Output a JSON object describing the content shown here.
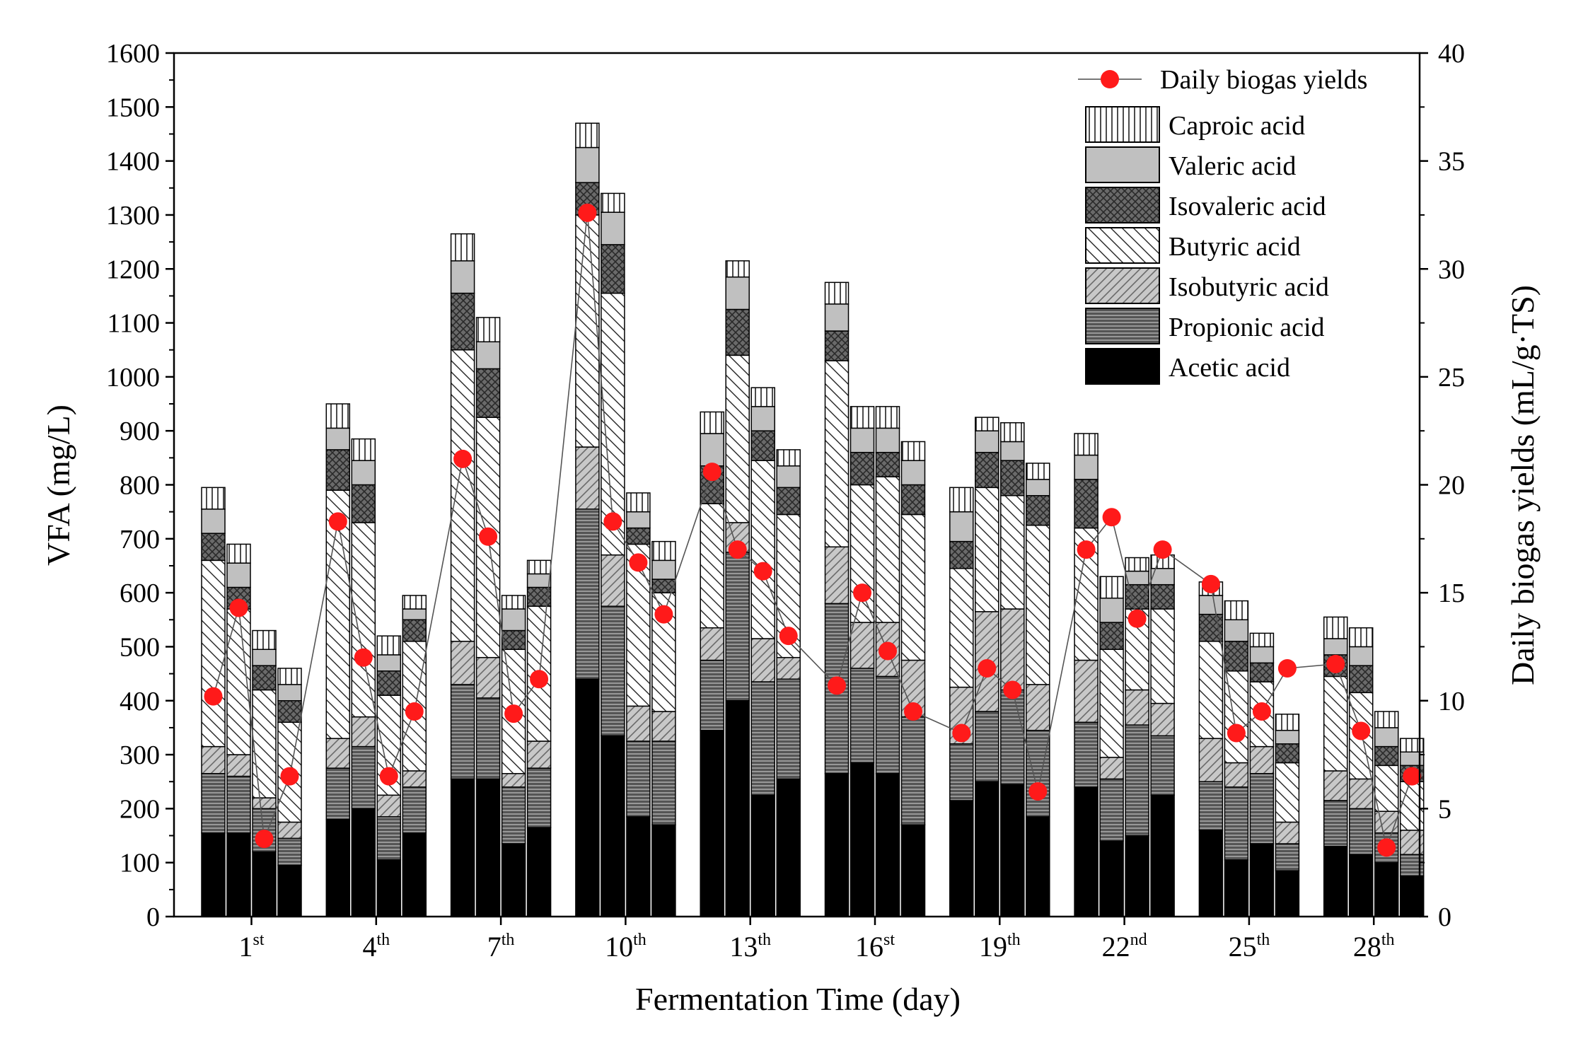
{
  "chart_data": {
    "type": "bar",
    "subtype": "stacked-bar-with-scatter-line",
    "title": "",
    "xlabel": "Fermentation Time (day)",
    "ylabel": "VFA (mg/L)",
    "y2label": "Daily biogas yields (mL/g·TS)",
    "ylim": [
      0,
      1600
    ],
    "y2lim": [
      0,
      40
    ],
    "yticks": [
      0,
      100,
      200,
      300,
      400,
      500,
      600,
      700,
      800,
      900,
      1000,
      1100,
      1200,
      1300,
      1400,
      1500,
      1600
    ],
    "y2ticks": [
      0,
      5,
      10,
      15,
      20,
      25,
      30,
      35,
      40
    ],
    "bars_per_group": 4,
    "groups": [
      {
        "num": "1",
        "sup": "st"
      },
      {
        "num": "4",
        "sup": "th"
      },
      {
        "num": "7",
        "sup": "th"
      },
      {
        "num": "10",
        "sup": "th"
      },
      {
        "num": "13",
        "sup": "th"
      },
      {
        "num": "16",
        "sup": "st"
      },
      {
        "num": "19",
        "sup": "th"
      },
      {
        "num": "22",
        "sup": "nd"
      },
      {
        "num": "25",
        "sup": "th"
      },
      {
        "num": "28",
        "sup": "th"
      }
    ],
    "series": [
      {
        "name": "Acetic acid",
        "pattern": "solid-black",
        "values": [
          155,
          155,
          120,
          95,
          180,
          200,
          105,
          155,
          255,
          255,
          135,
          165,
          440,
          335,
          185,
          170,
          345,
          400,
          225,
          255,
          265,
          285,
          265,
          170,
          215,
          250,
          245,
          185,
          240,
          140,
          150,
          225,
          160,
          105,
          135,
          85,
          130,
          115,
          100,
          75
        ]
      },
      {
        "name": "Propionic acid",
        "pattern": "dark-gray-hlines",
        "values": [
          110,
          105,
          80,
          50,
          95,
          115,
          80,
          85,
          175,
          150,
          105,
          110,
          315,
          240,
          140,
          155,
          130,
          275,
          210,
          185,
          315,
          175,
          180,
          200,
          105,
          130,
          175,
          160,
          120,
          115,
          205,
          110,
          90,
          135,
          130,
          50,
          85,
          85,
          55,
          40
        ]
      },
      {
        "name": "Isobutyric acid",
        "pattern": "gray-diagonal",
        "values": [
          50,
          40,
          20,
          30,
          55,
          55,
          40,
          30,
          80,
          75,
          25,
          50,
          115,
          95,
          65,
          55,
          60,
          55,
          80,
          40,
          105,
          85,
          100,
          105,
          105,
          185,
          150,
          85,
          115,
          40,
          65,
          60,
          80,
          45,
          50,
          40,
          55,
          55,
          40,
          45
        ]
      },
      {
        "name": "Butyric acid",
        "pattern": "white-backdiagonal",
        "values": [
          345,
          270,
          200,
          185,
          460,
          360,
          185,
          240,
          540,
          445,
          230,
          250,
          430,
          485,
          300,
          220,
          230,
          310,
          330,
          265,
          345,
          255,
          270,
          270,
          220,
          230,
          210,
          295,
          245,
          200,
          150,
          175,
          180,
          170,
          120,
          110,
          175,
          160,
          85,
          90
        ]
      },
      {
        "name": "Isovaleric acid",
        "pattern": "dark-crosshatch",
        "values": [
          50,
          40,
          45,
          40,
          75,
          70,
          45,
          40,
          105,
          90,
          35,
          35,
          60,
          90,
          30,
          25,
          70,
          85,
          55,
          50,
          55,
          60,
          45,
          55,
          50,
          65,
          65,
          55,
          90,
          50,
          45,
          45,
          50,
          55,
          35,
          35,
          40,
          50,
          35,
          30
        ]
      },
      {
        "name": "Valeric acid",
        "pattern": "light-gray",
        "values": [
          45,
          45,
          30,
          30,
          40,
          45,
          30,
          20,
          60,
          50,
          40,
          25,
          65,
          60,
          30,
          35,
          60,
          60,
          45,
          40,
          50,
          45,
          45,
          45,
          55,
          40,
          35,
          30,
          45,
          45,
          25,
          30,
          35,
          40,
          30,
          25,
          30,
          35,
          35,
          25
        ]
      },
      {
        "name": "Caproic acid",
        "pattern": "vertical-lines",
        "values": [
          40,
          35,
          35,
          30,
          45,
          40,
          35,
          25,
          50,
          45,
          25,
          25,
          45,
          35,
          35,
          35,
          40,
          30,
          35,
          30,
          40,
          40,
          40,
          35,
          45,
          25,
          35,
          30,
          40,
          40,
          25,
          25,
          25,
          35,
          25,
          30,
          40,
          35,
          30,
          25
        ]
      }
    ],
    "line_series": {
      "name": "Daily biogas yields",
      "axis": "right",
      "values": [
        10.2,
        14.3,
        3.6,
        6.5,
        18.3,
        12.0,
        6.5,
        9.5,
        21.2,
        17.6,
        9.4,
        11.0,
        32.6,
        18.3,
        16.4,
        14.0,
        20.6,
        17.0,
        16.0,
        13.0,
        10.7,
        15.0,
        12.3,
        9.5,
        8.5,
        11.5,
        10.5,
        5.8,
        17.0,
        18.5,
        13.8,
        17.0,
        15.4,
        8.5,
        9.5,
        11.5,
        11.7,
        8.6,
        3.2,
        6.5
      ]
    },
    "legend_position": "top-right",
    "grid": false
  }
}
